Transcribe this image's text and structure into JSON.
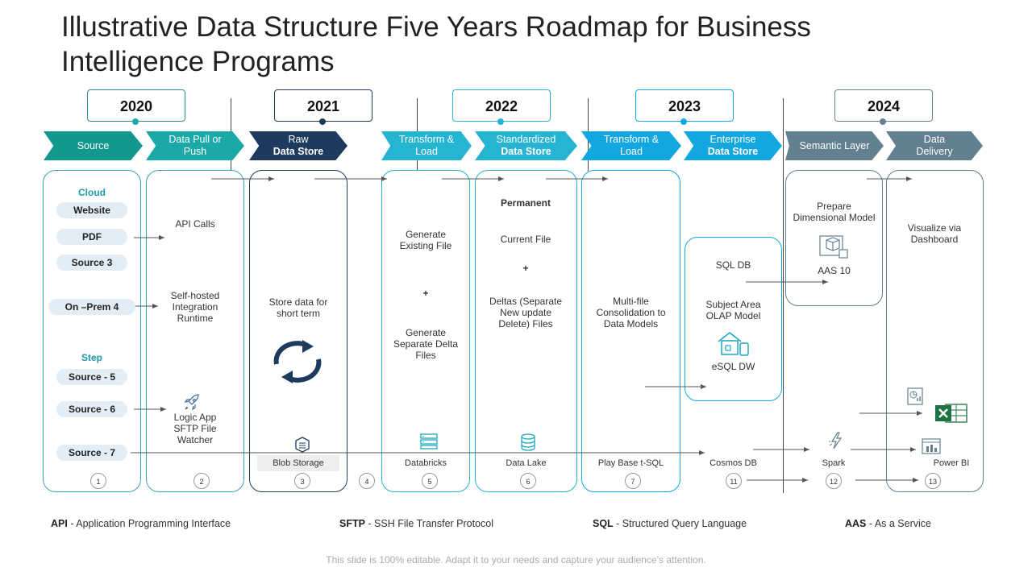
{
  "title": "Illustrative Data Structure Five Years Roadmap for Business Intelligence Programs",
  "colors": {
    "teal_dark": "#14978f",
    "teal": "#1aa9a8",
    "navy": "#1e3a5f",
    "cyan": "#25b4d2",
    "blue": "#12a7e0",
    "slate": "#62808f"
  },
  "years": [
    "2020",
    "2021",
    "2022",
    "2023",
    "2024"
  ],
  "stages": [
    {
      "line1": "Source",
      "line2": ""
    },
    {
      "line1": "Data Pull or",
      "line2": "Push"
    },
    {
      "line1": "Raw",
      "line2": "Data Store"
    },
    {
      "line1": "Transform  &",
      "line2": "Load"
    },
    {
      "line1": "Standardized",
      "line2": "Data Store"
    },
    {
      "line1": "Transform  &",
      "line2": "Load"
    },
    {
      "line1": "Enterprise",
      "line2": "Data Store"
    },
    {
      "line1": "Semantic Layer",
      "line2": ""
    },
    {
      "line1": "Data",
      "line2": "Delivery"
    }
  ],
  "source": {
    "cloud_heading": "Cloud",
    "cloud_items": [
      "Website",
      "PDF",
      "Source 3"
    ],
    "onprem": "On –Prem 4",
    "step_heading": "Step",
    "step_items": [
      "Source - 5",
      "Source - 6",
      "Source - 7"
    ]
  },
  "pull": {
    "api": "API Calls",
    "runtime": "Self-hosted Integration Runtime",
    "logic": "Logic App SFTP File Watcher"
  },
  "raw": {
    "text": "Store data for short term",
    "label": "Blob Storage"
  },
  "transform1": {
    "existing": "Generate Existing File",
    "plus": "+",
    "delta": "Generate Separate Delta Files",
    "label": "Databricks"
  },
  "standardized": {
    "permanent": "Permanent",
    "current": "Current File",
    "plus": "+",
    "deltas": "Deltas (Separate New update Delete) Files",
    "label": "Data Lake"
  },
  "transform2": {
    "text": "Multi-file Consolidation to Data Models",
    "label": "Play Base t-SQL"
  },
  "enterprise": {
    "sqldb": "SQL DB",
    "olap": "Subject Area OLAP Model",
    "esql": "eSQL DW",
    "label": "Cosmos DB"
  },
  "semantic": {
    "text": "Prepare Dimensional Model",
    "aas": "AAS  10",
    "label": "Spark"
  },
  "delivery": {
    "text": "Visualize via Dashboard",
    "label": "Power BI"
  },
  "numbers": [
    "1",
    "2",
    "3",
    "4",
    "5",
    "6",
    "7",
    "11",
    "12",
    "13"
  ],
  "footer": [
    {
      "abbr": "API",
      "text": " - Application Programming Interface"
    },
    {
      "abbr": "SFTP",
      "text": " - SSH File Transfer Protocol"
    },
    {
      "abbr": "SQL",
      "text": " - Structured Query Language"
    },
    {
      "abbr": "AAS",
      "text": " -  As a Service"
    }
  ],
  "note": "This slide is 100% editable. Adapt it to your needs and capture your audience’s attention."
}
